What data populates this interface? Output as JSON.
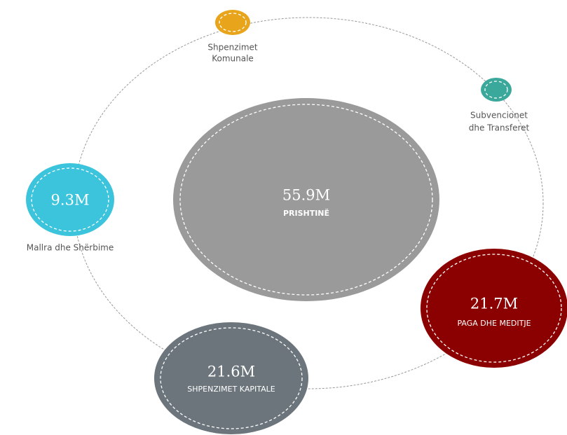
{
  "center": {
    "value": "55.9M",
    "label": "PRISHTINË"
  },
  "nodes": [
    {
      "label_lines": [
        "Shpenzimet",
        "Komunale"
      ]
    },
    {
      "label_lines": [
        "Subvencionet",
        "dhe Transferet"
      ]
    },
    {
      "value": "9.3M",
      "label": "Mallra dhe Shërbime"
    },
    {
      "value": "21.7M",
      "label": "PAGA DHE MEDITJE"
    },
    {
      "value": "21.6M",
      "label": "SHPENZIMET KAPITALE"
    }
  ]
}
